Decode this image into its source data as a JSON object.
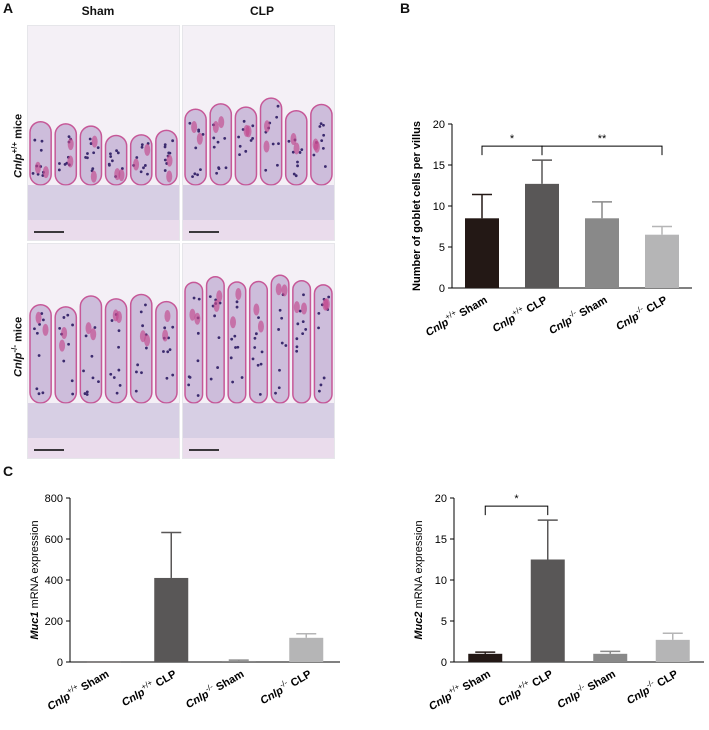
{
  "panel_labels": {
    "a": "A",
    "b": "B",
    "c": "C"
  },
  "panel_a": {
    "columns": [
      "Sham",
      "CLP"
    ],
    "rows": [
      {
        "gene": "Cnlp",
        "sup": "+/+",
        "suffix": " mice"
      },
      {
        "gene": "Cnlp",
        "sup": "-/-",
        "suffix": " mice"
      }
    ],
    "stain_colors": {
      "background": "#f4f0f6",
      "villus": "#c9b8d9",
      "goblet": "#c2488e",
      "nuclei": "#3b2a6e"
    }
  },
  "chart_data": [
    {
      "id": "goblet",
      "type": "bar",
      "ylabel": "Number of goblet cells per villus",
      "ylim": [
        0,
        20
      ],
      "yticks": [
        0,
        5,
        10,
        15,
        20
      ],
      "categories": [
        {
          "gene": "Cnlp",
          "sup": "+/+",
          "rest": " Sham"
        },
        {
          "gene": "Cnlp",
          "sup": "+/+",
          "rest": " CLP"
        },
        {
          "gene": "Cnlp",
          "sup": "-/-",
          "rest": " Sham"
        },
        {
          "gene": "Cnlp",
          "sup": "-/-",
          "rest": " CLP"
        }
      ],
      "values": [
        8.5,
        12.7,
        8.5,
        6.5
      ],
      "errors": [
        2.9,
        2.9,
        2.0,
        1.0
      ],
      "colors": [
        "#231815",
        "#595757",
        "#898989",
        "#b5b5b6"
      ],
      "significance": [
        {
          "from": 0,
          "to": 1,
          "label": "*"
        },
        {
          "from": 1,
          "to": 3,
          "label": "**"
        }
      ]
    },
    {
      "id": "muc1",
      "type": "bar",
      "ylabel_gene": "Muc1",
      "ylabel_rest": " mRNA expression",
      "ylim": [
        0,
        800
      ],
      "yticks": [
        0,
        200,
        400,
        600,
        800
      ],
      "categories": [
        {
          "gene": "Cnlp",
          "sup": "+/+",
          "rest": " Sham"
        },
        {
          "gene": "Cnlp",
          "sup": "+/+",
          "rest": " CLP"
        },
        {
          "gene": "Cnlp",
          "sup": "-/-",
          "rest": " Sham"
        },
        {
          "gene": "Cnlp",
          "sup": "-/-",
          "rest": " CLP"
        }
      ],
      "values": [
        1,
        410,
        5,
        118
      ],
      "errors": [
        0,
        222,
        4,
        20
      ],
      "colors": [
        "#231815",
        "#595757",
        "#898989",
        "#b5b5b6"
      ],
      "significance": []
    },
    {
      "id": "muc2",
      "type": "bar",
      "ylabel_gene": "Muc2",
      "ylabel_rest": " mRNA expression",
      "ylim": [
        0,
        20
      ],
      "yticks": [
        0,
        5,
        10,
        15,
        20
      ],
      "categories": [
        {
          "gene": "Cnlp",
          "sup": "+/+",
          "rest": " Sham"
        },
        {
          "gene": "Cnlp",
          "sup": "+/+",
          "rest": " CLP"
        },
        {
          "gene": "Cnlp",
          "sup": "-/-",
          "rest": " Sham"
        },
        {
          "gene": "Cnlp",
          "sup": "-/-",
          "rest": " CLP"
        }
      ],
      "values": [
        1.0,
        12.5,
        1.0,
        2.7
      ],
      "errors": [
        0.2,
        4.8,
        0.3,
        0.8
      ],
      "colors": [
        "#231815",
        "#595757",
        "#898989",
        "#b5b5b6"
      ],
      "significance": [
        {
          "from": 0,
          "to": 1,
          "label": "*"
        }
      ]
    }
  ]
}
